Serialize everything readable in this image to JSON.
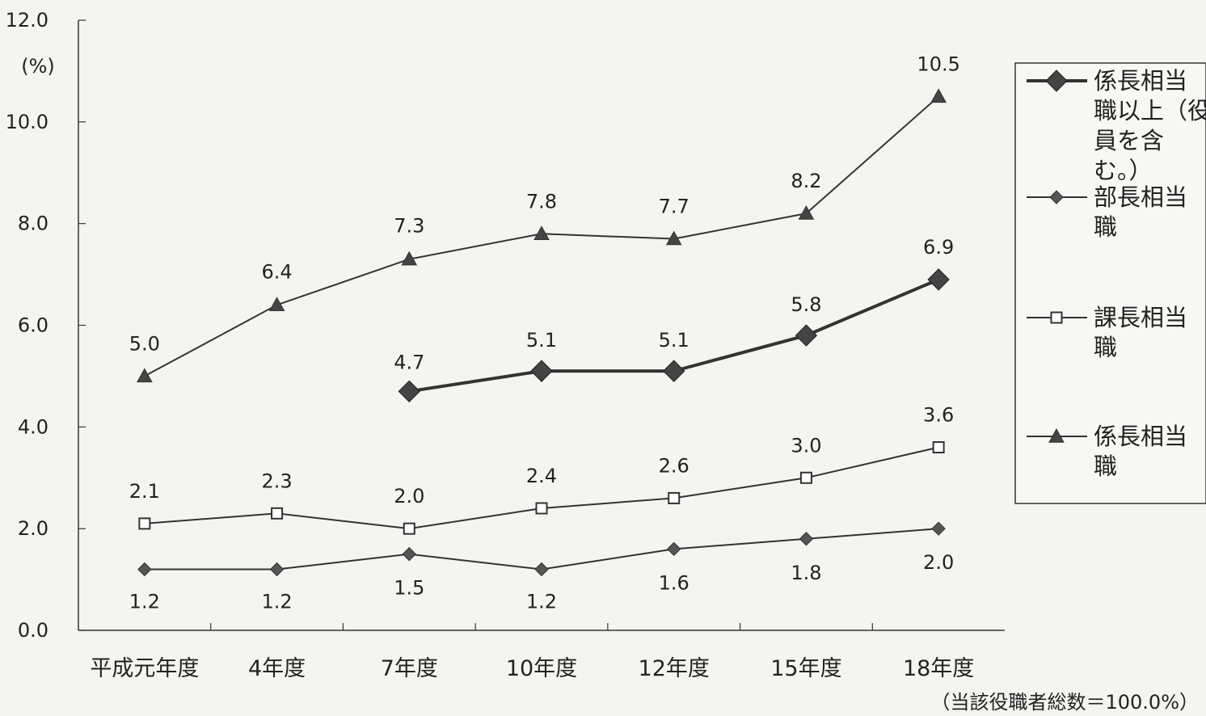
{
  "chart_data": {
    "type": "line",
    "unit_label": "(%)",
    "ylim": [
      0,
      12
    ],
    "yticks": [
      "0.0",
      "2.0",
      "4.0",
      "6.0",
      "8.0",
      "10.0",
      "12.0"
    ],
    "categories": [
      "平成元年度",
      "4年度",
      "7年度",
      "10年度",
      "12年度",
      "15年度",
      "18年度"
    ],
    "series": [
      {
        "name": "係長相当職以上（役員を含む。）",
        "legend_lines": [
          "係長相当",
          "職以上（役",
          "員を含",
          "む。）"
        ],
        "marker": "diamond-large",
        "values": [
          null,
          null,
          4.7,
          5.1,
          5.1,
          5.8,
          6.9
        ],
        "labels": [
          "",
          "",
          "4.7",
          "5.1",
          "5.1",
          "5.8",
          "6.9"
        ]
      },
      {
        "name": "部長相当職",
        "legend_lines": [
          "部長相当",
          "職"
        ],
        "marker": "diamond-small",
        "values": [
          1.2,
          1.2,
          1.5,
          1.2,
          1.6,
          1.8,
          2.0
        ],
        "labels": [
          "1.2",
          "1.2",
          "1.5",
          "1.2",
          "1.6",
          "1.8",
          "2.0"
        ]
      },
      {
        "name": "課長相当職",
        "legend_lines": [
          "課長相当",
          "職"
        ],
        "marker": "square-open",
        "values": [
          2.1,
          2.3,
          2.0,
          2.4,
          2.6,
          3.0,
          3.6
        ],
        "labels": [
          "2.1",
          "2.3",
          "2.0",
          "2.4",
          "2.6",
          "3.0",
          "3.6"
        ]
      },
      {
        "name": "係長相当職",
        "legend_lines": [
          "係長相当",
          "職"
        ],
        "marker": "triangle",
        "values": [
          5.0,
          6.4,
          7.3,
          7.8,
          7.7,
          8.2,
          10.5
        ],
        "labels": [
          "5.0",
          "6.4",
          "7.3",
          "7.8",
          "7.7",
          "8.2",
          "10.5"
        ]
      }
    ],
    "note": "（当該役職者総数＝100.0%）",
    "legend_position": "right",
    "grid": false
  }
}
